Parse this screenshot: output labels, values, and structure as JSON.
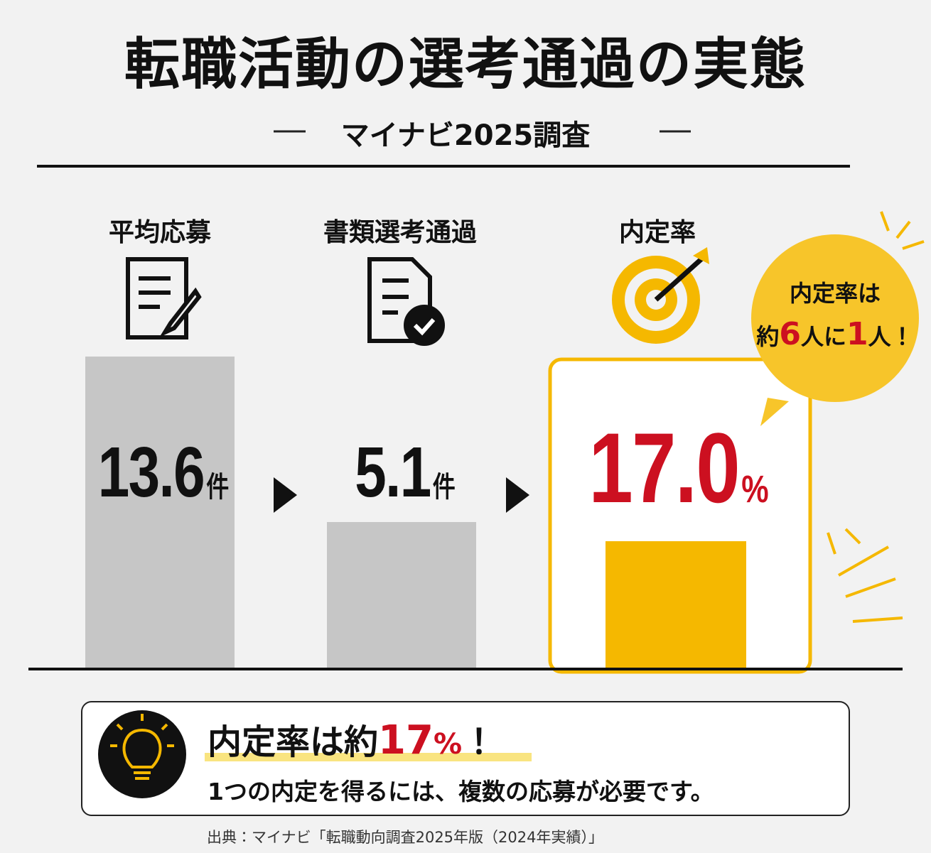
{
  "header": {
    "title": "転職活動の選考通過の実態",
    "subtitle": "マイナビ2025調査"
  },
  "stages": [
    {
      "label": "平均応募",
      "value": "13.6",
      "unit": "件"
    },
    {
      "label": "書類選考通過",
      "value": "5.1",
      "unit": "件"
    },
    {
      "label": "内定率",
      "value": "17.0",
      "unit": "%"
    }
  ],
  "callout": {
    "line1": "内定率は",
    "parts": [
      "約",
      "6",
      "人に",
      "1",
      "人！"
    ]
  },
  "summary": {
    "headline": [
      "内定率は約",
      "17",
      "%",
      "！"
    ],
    "body": "1つの内定を得るには、複数の応募が必要です。"
  },
  "source": "出典：マイナビ「転職動向調査2025年版（2024年実績）」"
}
